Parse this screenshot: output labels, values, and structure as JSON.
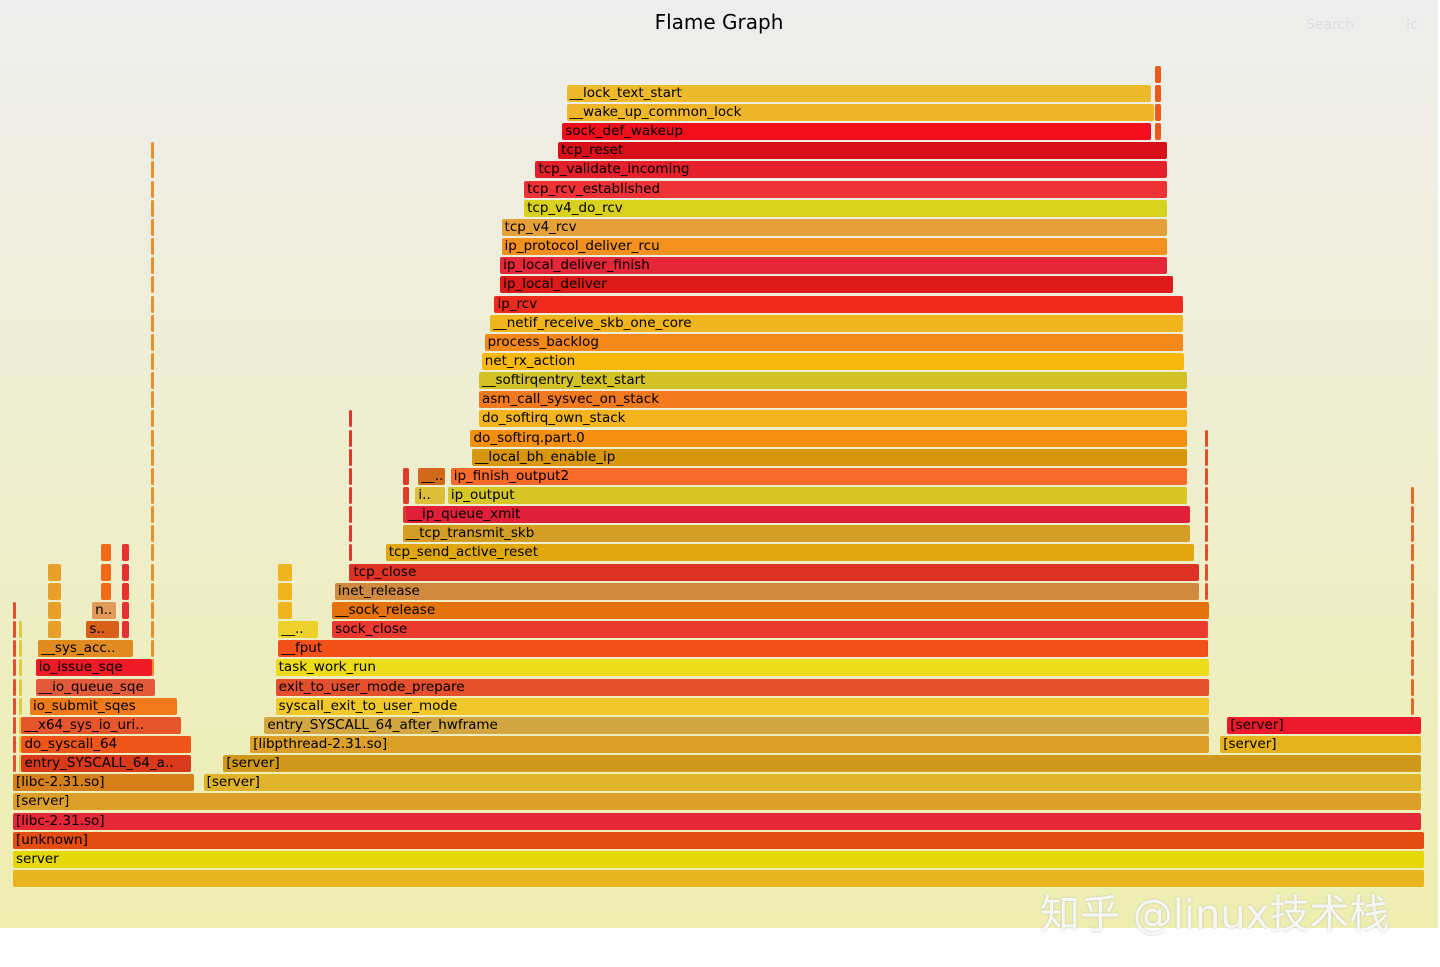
{
  "header": {
    "title": "Flame Graph",
    "search": "Search",
    "ic": "Ic"
  },
  "watermark": "知乎 @linux技术栈",
  "chart_data": {
    "type": "flamegraph",
    "title": "Flame Graph",
    "units": "per-mille of total samples",
    "frames": [
      {
        "d": 0,
        "s": 0,
        "w": 1000,
        "label": "",
        "c": "#e8b520"
      },
      {
        "d": 1,
        "s": 0,
        "w": 1000,
        "label": "server",
        "c": "#e5d80a"
      },
      {
        "d": 2,
        "s": 0,
        "w": 1000,
        "label": "[unknown]",
        "c": "#e44d12"
      },
      {
        "d": 3,
        "s": 0,
        "w": 998,
        "label": "[libc-2.31.so]",
        "c": "#e42838"
      },
      {
        "d": 4,
        "s": 0,
        "w": 998,
        "label": "[server]",
        "c": "#dca02a"
      },
      {
        "d": 5,
        "s": 0,
        "w": 129,
        "label": "[libc-2.31.so]",
        "c": "#d6801c"
      },
      {
        "d": 5,
        "s": 135,
        "w": 863,
        "label": "[server]",
        "c": "#e0b42a"
      },
      {
        "d": 6,
        "s": 6,
        "w": 121,
        "label": "entry_SYSCALL_64_a..",
        "c": "#d93a1c"
      },
      {
        "d": 6,
        "s": 149,
        "w": 849,
        "label": "[server]",
        "c": "#cf9a1c"
      },
      {
        "d": 7,
        "s": 6,
        "w": 121,
        "label": "do_syscall_64",
        "c": "#f0561a"
      },
      {
        "d": 7,
        "s": 168,
        "w": 680,
        "label": "[libpthread-2.31.so]",
        "c": "#dca02a"
      },
      {
        "d": 7,
        "s": 855,
        "w": 143,
        "label": "[server]",
        "c": "#e6b21e"
      },
      {
        "d": 8,
        "s": 6,
        "w": 114,
        "label": "__x64_sys_io_uri..",
        "c": "#e6552c"
      },
      {
        "d": 8,
        "s": 178,
        "w": 670,
        "label": "entry_SYSCALL_64_after_hwframe",
        "c": "#d2a641"
      },
      {
        "d": 8,
        "s": 860,
        "w": 138,
        "label": "[server]",
        "c": "#ec1a2c"
      },
      {
        "d": 9,
        "s": 12,
        "w": 105,
        "label": "io_submit_sqes",
        "c": "#f07a1a"
      },
      {
        "d": 9,
        "s": 186,
        "w": 662,
        "label": "syscall_exit_to_user_mode",
        "c": "#f0c82a"
      },
      {
        "d": 10,
        "s": 16,
        "w": 85,
        "label": "__io_queue_sqe",
        "c": "#e25a3a"
      },
      {
        "d": 10,
        "s": 186,
        "w": 662,
        "label": "exit_to_user_mode_prepare",
        "c": "#e4502c"
      },
      {
        "d": 11,
        "s": 16,
        "w": 83,
        "label": "io_issue_sqe",
        "c": "#ee1a26"
      },
      {
        "d": 11,
        "s": 186,
        "w": 662,
        "label": "task_work_run",
        "c": "#ecdc1a"
      },
      {
        "d": 12,
        "s": 18,
        "w": 68,
        "label": "__sys_acc..",
        "c": "#e08a20"
      },
      {
        "d": 12,
        "s": 188,
        "w": 658,
        "label": "__fput",
        "c": "#f4501a"
      },
      {
        "d": 13,
        "s": 52,
        "w": 24,
        "label": "s..",
        "c": "#d8601a"
      },
      {
        "d": 13,
        "s": 188,
        "w": 29,
        "label": "__..",
        "c": "#ecd22a"
      },
      {
        "d": 13,
        "s": 226,
        "w": 620,
        "label": "sock_close",
        "c": "#ea3a30"
      },
      {
        "d": 14,
        "s": 56,
        "w": 18,
        "label": "n..",
        "c": "#e09a5a"
      },
      {
        "d": 14,
        "s": 226,
        "w": 622,
        "label": "__sock_release",
        "c": "#e4720e"
      },
      {
        "d": 15,
        "s": 228,
        "w": 613,
        "label": "inet_release",
        "c": "#cf8a40"
      },
      {
        "d": 16,
        "s": 239,
        "w": 602,
        "label": "tcp_close",
        "c": "#de3224"
      },
      {
        "d": 17,
        "s": 264,
        "w": 573,
        "label": "tcp_send_active_reset",
        "c": "#e0a80e"
      },
      {
        "d": 18,
        "s": 276,
        "w": 558,
        "label": "__tcp_transmit_skb",
        "c": "#d49e26"
      },
      {
        "d": 19,
        "s": 278,
        "w": 556,
        "label": "__ip_queue_xmit",
        "c": "#e02038"
      },
      {
        "d": 20,
        "s": 285,
        "w": 22,
        "label": "i..",
        "c": "#dcc03a"
      },
      {
        "d": 20,
        "s": 308,
        "w": 524,
        "label": "ip_output",
        "c": "#d6c626"
      },
      {
        "d": 21,
        "s": 287,
        "w": 20,
        "label": "__..",
        "c": "#d2681a"
      },
      {
        "d": 21,
        "s": 310,
        "w": 522,
        "label": "ip_finish_output2",
        "c": "#f86a2a"
      },
      {
        "d": 22,
        "s": 325,
        "w": 507,
        "label": "__local_bh_enable_ip",
        "c": "#d8960e"
      },
      {
        "d": 23,
        "s": 324,
        "w": 508,
        "label": "do_softirq.part.0",
        "c": "#f4900e"
      },
      {
        "d": 24,
        "s": 330,
        "w": 502,
        "label": "do_softirq_own_stack",
        "c": "#f4b41e"
      },
      {
        "d": 25,
        "s": 330,
        "w": 502,
        "label": "asm_call_sysvec_on_stack",
        "c": "#f27a1e"
      },
      {
        "d": 26,
        "s": 330,
        "w": 502,
        "label": "__softirqentry_text_start",
        "c": "#d2c226"
      },
      {
        "d": 27,
        "s": 332,
        "w": 498,
        "label": "net_rx_action",
        "c": "#f8b80e"
      },
      {
        "d": 28,
        "s": 334,
        "w": 495,
        "label": "process_backlog",
        "c": "#f6881a"
      },
      {
        "d": 29,
        "s": 338,
        "w": 491,
        "label": "__netif_receive_skb_one_core",
        "c": "#f0b41c"
      },
      {
        "d": 30,
        "s": 341,
        "w": 488,
        "label": "ip_rcv",
        "c": "#ee2a1c"
      },
      {
        "d": 31,
        "s": 345,
        "w": 477,
        "label": "ip_local_deliver",
        "c": "#dc1a1a"
      },
      {
        "d": 32,
        "s": 345,
        "w": 473,
        "label": "ip_local_deliver_finish",
        "c": "#e4283a"
      },
      {
        "d": 33,
        "s": 346,
        "w": 472,
        "label": "ip_protocol_deliver_rcu",
        "c": "#f4901e"
      },
      {
        "d": 34,
        "s": 346,
        "w": 472,
        "label": "tcp_v4_rcv",
        "c": "#e6a03a"
      },
      {
        "d": 35,
        "s": 362,
        "w": 456,
        "label": "tcp_v4_do_rcv",
        "c": "#d8d21e"
      },
      {
        "d": 36,
        "s": 362,
        "w": 456,
        "label": "tcp_rcv_established",
        "c": "#ee3236"
      },
      {
        "d": 37,
        "s": 370,
        "w": 448,
        "label": "tcp_validate_incoming",
        "c": "#e4202c"
      },
      {
        "d": 38,
        "s": 386,
        "w": 432,
        "label": "tcp_reset",
        "c": "#d8101a"
      },
      {
        "d": 39,
        "s": 389,
        "w": 418,
        "label": "sock_def_wakeup",
        "c": "#f20e1a"
      },
      {
        "d": 40,
        "s": 392,
        "w": 417,
        "label": "__wake_up_common_lock",
        "c": "#f0b62a"
      },
      {
        "d": 41,
        "s": 392,
        "w": 415,
        "label": "__lock_text_start",
        "c": "#ecba2a"
      }
    ],
    "spikes": [
      {
        "s": 98,
        "w": 2,
        "from": 5,
        "to": 38,
        "c": "#e8902a"
      },
      {
        "s": 990,
        "w": 3,
        "from": 8,
        "to": 20,
        "c": "#e06a2a"
      },
      {
        "s": 844,
        "w": 2,
        "from": 9,
        "to": 23,
        "c": "#e0502a"
      },
      {
        "s": 238,
        "w": 2,
        "from": 13,
        "to": 24,
        "c": "#dc3a2a"
      },
      {
        "s": 809,
        "w": 5,
        "from": 36,
        "to": 42,
        "c": "#ee5a1a"
      },
      {
        "s": 0,
        "w": 2,
        "from": 5,
        "to": 14,
        "c": "#e05030"
      },
      {
        "s": 4,
        "w": 2,
        "from": 6,
        "to": 13,
        "c": "#d8d040"
      },
      {
        "s": 77,
        "w": 6,
        "from": 10,
        "to": 17,
        "c": "#e83030"
      },
      {
        "s": 62,
        "w": 8,
        "from": 13,
        "to": 17,
        "c": "#f06a1a"
      },
      {
        "s": 25,
        "w": 10,
        "from": 13,
        "to": 16,
        "c": "#e8a02a"
      },
      {
        "s": 188,
        "w": 10,
        "from": 14,
        "to": 16,
        "c": "#f0b41e"
      },
      {
        "s": 276,
        "w": 5,
        "from": 17,
        "to": 21,
        "c": "#e03a2a"
      }
    ]
  }
}
